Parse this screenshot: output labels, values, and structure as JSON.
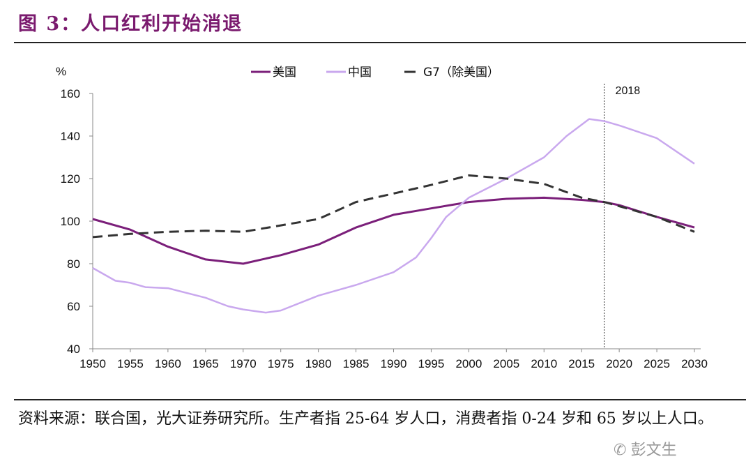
{
  "title": "图 3：人口红利开始消退",
  "footer": "资料来源：联合国，光大证券研究所。生产者指 25-64 岁人口，消费者指 0-24 岁和 65 岁以上人口。",
  "watermark": "彭文生",
  "chart_data": {
    "type": "line",
    "ylabel": "%",
    "ylim": [
      40,
      160
    ],
    "xlim": [
      1950,
      2030
    ],
    "yticks": [
      40,
      60,
      80,
      100,
      120,
      140,
      160
    ],
    "xticks": [
      1950,
      1955,
      1960,
      1965,
      1970,
      1975,
      1980,
      1985,
      1990,
      1995,
      2000,
      2005,
      2010,
      2015,
      2020,
      2025,
      2030
    ],
    "legend_position": "top-center",
    "grid": false,
    "annotation": {
      "label": "2018",
      "x": 2018
    },
    "series": [
      {
        "name": "美国",
        "color": "#7b1f7a",
        "dash": "solid",
        "x": [
          1950,
          1955,
          1960,
          1965,
          1970,
          1975,
          1980,
          1985,
          1990,
          1995,
          2000,
          2005,
          2010,
          2015,
          2018,
          2020,
          2025,
          2030
        ],
        "y": [
          101,
          96,
          88,
          82,
          80,
          84,
          89,
          97,
          103,
          106,
          109,
          110.5,
          111,
          110,
          109,
          107.5,
          102,
          97
        ]
      },
      {
        "name": "中国",
        "color": "#c9a8ee",
        "dash": "solid",
        "x": [
          1950,
          1953,
          1955,
          1957,
          1960,
          1965,
          1968,
          1970,
          1973,
          1975,
          1980,
          1985,
          1990,
          1993,
          1995,
          1997,
          2000,
          2005,
          2010,
          2013,
          2016,
          2018,
          2020,
          2025,
          2030
        ],
        "y": [
          78,
          72,
          71,
          69,
          68.5,
          64,
          60,
          58.5,
          57,
          58,
          65,
          70,
          76,
          83,
          92,
          102,
          111,
          120,
          130,
          140,
          148,
          147,
          145,
          139,
          127
        ]
      },
      {
        "name": "G7（除美国）",
        "color": "#333333",
        "dash": "dashed",
        "x": [
          1950,
          1955,
          1960,
          1965,
          1970,
          1975,
          1980,
          1985,
          1990,
          1995,
          2000,
          2005,
          2010,
          2015,
          2018,
          2020,
          2025,
          2030
        ],
        "y": [
          92.5,
          94,
          95,
          95.5,
          95,
          98,
          101,
          109,
          113,
          117,
          121.5,
          120,
          117.5,
          111,
          109,
          107,
          102,
          95
        ]
      }
    ]
  }
}
